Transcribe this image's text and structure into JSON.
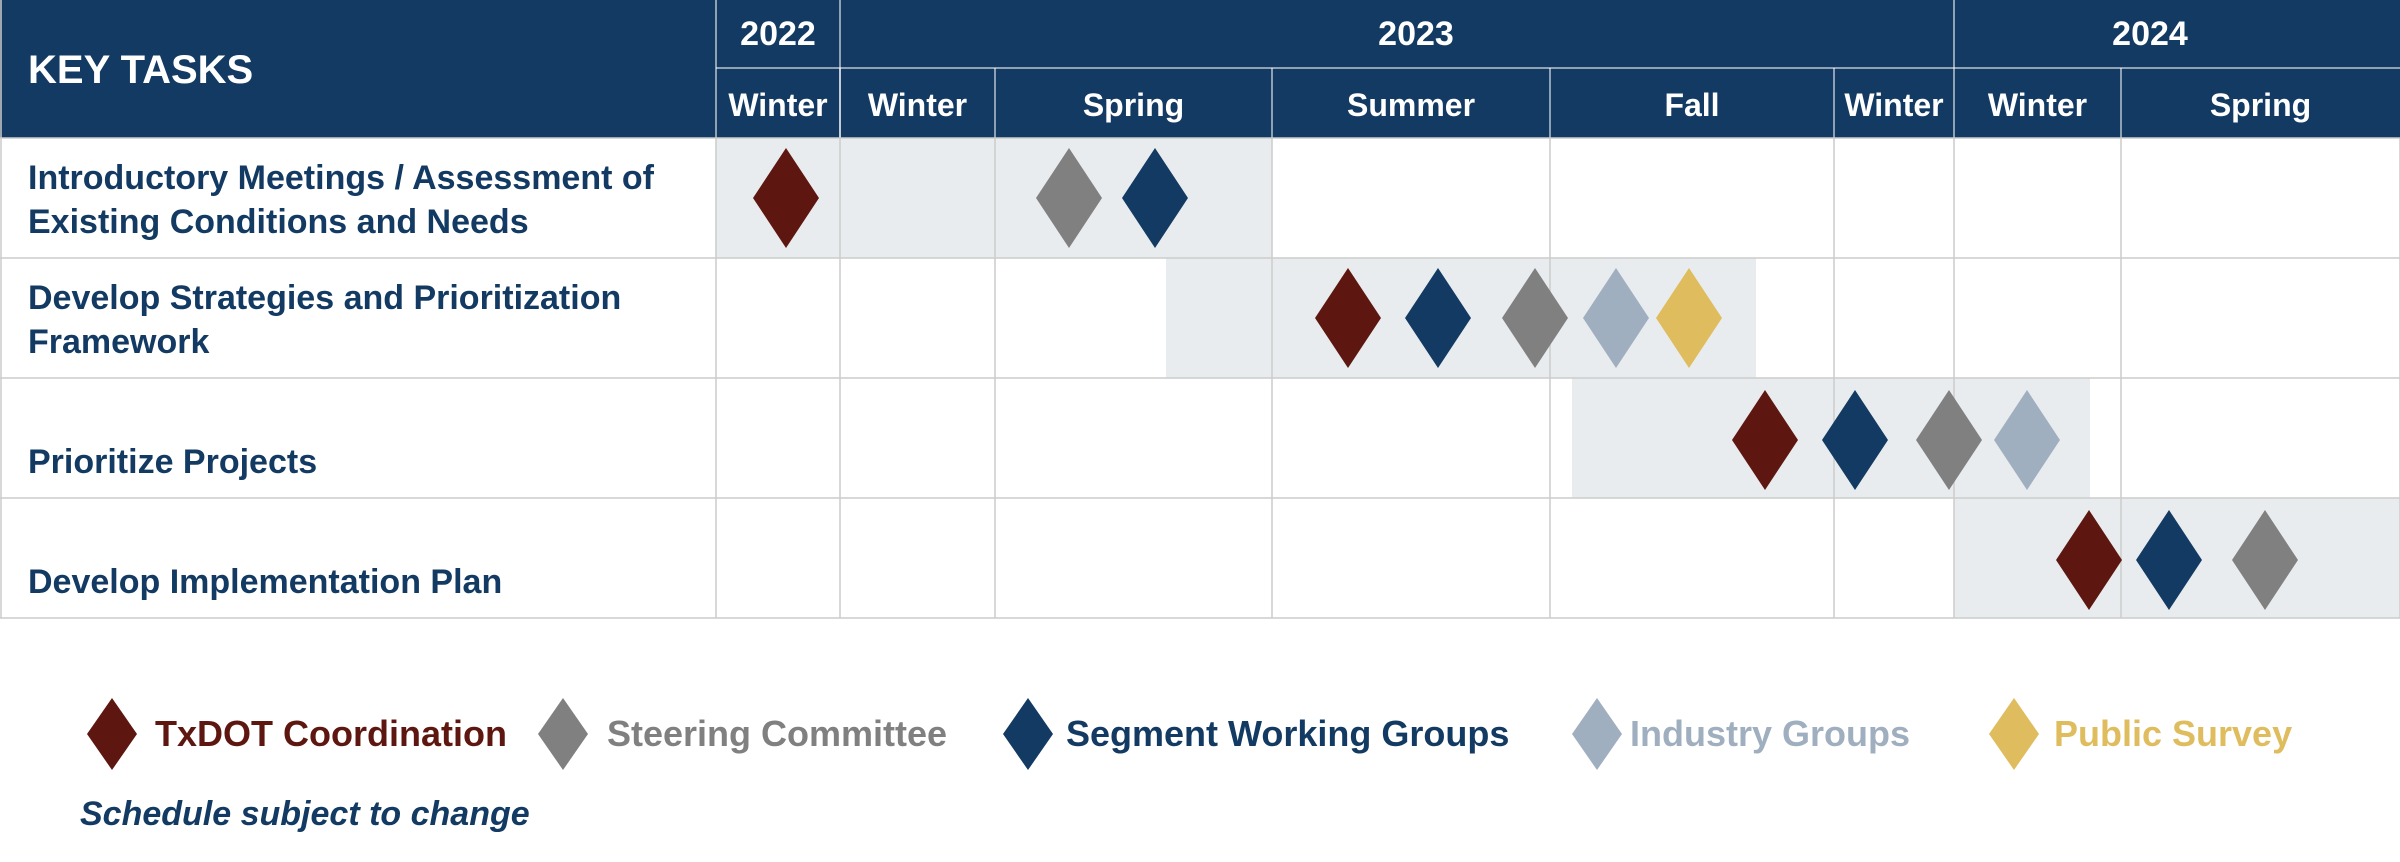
{
  "header": {
    "key_tasks": "KEY  TASKS",
    "years": [
      "2022",
      "2023",
      "2024"
    ],
    "seasons": [
      "Winter",
      "Winter",
      "Spring",
      "Summer",
      "Fall",
      "Winter",
      "Winter",
      "Spring"
    ]
  },
  "tasks": [
    {
      "label": "Introductory Meetings / Assessment of\nExisting Conditions and Needs",
      "span": [
        "Winter 2022",
        "Spring 2023"
      ],
      "milestones": [
        "TxDOT Coordination",
        "Steering Committee",
        "Segment Working Groups"
      ]
    },
    {
      "label": "Develop Strategies and Prioritization\nFramework",
      "span": [
        "Spring 2023",
        "Fall 2023"
      ],
      "milestones": [
        "TxDOT Coordination",
        "Segment Working Groups",
        "Steering Committee",
        "Industry Groups",
        "Public Survey"
      ]
    },
    {
      "label": "Prioritize Projects",
      "span": [
        "Fall 2023",
        "Winter 2024"
      ],
      "milestones": [
        "TxDOT Coordination",
        "Segment Working Groups",
        "Steering Committee",
        "Industry Groups"
      ]
    },
    {
      "label": "Develop Implementation Plan",
      "span": [
        "Winter 2024",
        "Spring 2024"
      ],
      "milestones": [
        "TxDOT Coordination",
        "Segment Working Groups",
        "Steering Committee"
      ]
    }
  ],
  "legend": [
    {
      "label": "TxDOT Coordination",
      "color": "#5e1710",
      "text_color": "#5e1710"
    },
    {
      "label": "Steering Committee",
      "color": "#808080",
      "text_color": "#808080"
    },
    {
      "label": "Segment Working Groups",
      "color": "#133a62",
      "text_color": "#133a62"
    },
    {
      "label": "Industry Groups",
      "color": "#a0afbf",
      "text_color": "#a0afbf"
    },
    {
      "label": "Public Survey",
      "color": "#dfbd5e",
      "text_color": "#dfbd5e"
    }
  ],
  "note": "Schedule subject to change",
  "colors": {
    "header_bg": "#133a62",
    "span_bg": "#e9ecef",
    "grid": "#cccccc",
    "text": "#133a62"
  }
}
